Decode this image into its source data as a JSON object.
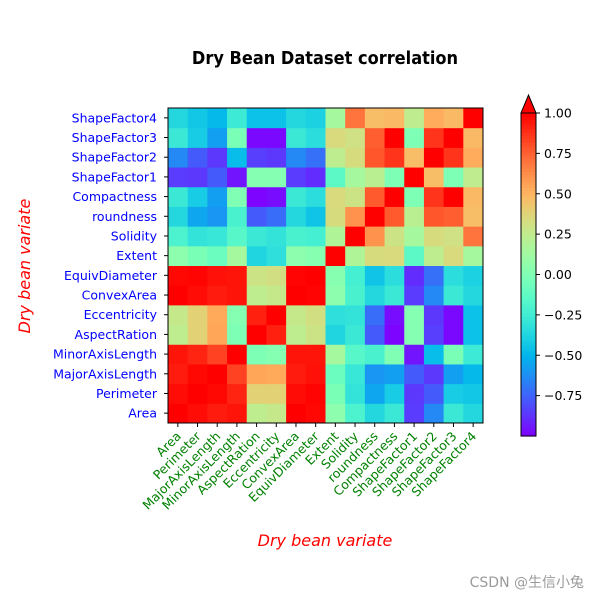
{
  "chart_data": {
    "type": "heatmap",
    "title": "Dry Bean Dataset correlation",
    "xlabel": "Dry bean variate",
    "ylabel": "Dry bean variate",
    "variables": [
      "Area",
      "Perimeter",
      "MajorAxisLength",
      "MinorAxisLength",
      "AspectRation",
      "Eccentricity",
      "ConvexArea",
      "EquivDiameter",
      "Extent",
      "Solidity",
      "roundness",
      "Compactness",
      "ShapeFactor1",
      "ShapeFactor2",
      "ShapeFactor3",
      "ShapeFactor4"
    ],
    "matrix": [
      [
        1.0,
        0.97,
        0.93,
        0.95,
        0.24,
        0.27,
        1.0,
        0.98,
        0.05,
        -0.2,
        -0.36,
        -0.27,
        -0.85,
        -0.64,
        -0.27,
        -0.36
      ],
      [
        0.97,
        1.0,
        0.98,
        0.91,
        0.39,
        0.39,
        0.97,
        0.99,
        -0.02,
        -0.3,
        -0.55,
        -0.41,
        -0.86,
        -0.77,
        -0.41,
        -0.43
      ],
      [
        0.93,
        0.98,
        1.0,
        0.83,
        0.55,
        0.54,
        0.93,
        0.96,
        -0.08,
        -0.28,
        -0.6,
        -0.57,
        -0.77,
        -0.86,
        -0.57,
        -0.48
      ],
      [
        0.95,
        0.91,
        0.83,
        1.0,
        -0.01,
        0.02,
        0.95,
        0.95,
        0.15,
        -0.16,
        -0.21,
        0.0,
        -0.95,
        -0.47,
        -0.02,
        -0.26
      ],
      [
        0.24,
        0.39,
        0.55,
        -0.01,
        1.0,
        0.92,
        0.24,
        0.3,
        -0.37,
        -0.27,
        -0.77,
        -0.99,
        0.02,
        -0.84,
        -0.98,
        -0.45
      ],
      [
        0.27,
        0.39,
        0.54,
        0.02,
        0.92,
        1.0,
        0.27,
        0.32,
        -0.32,
        -0.3,
        -0.72,
        -0.97,
        0.02,
        -0.86,
        -0.98,
        -0.45
      ],
      [
        1.0,
        0.97,
        0.93,
        0.95,
        0.24,
        0.27,
        1.0,
        0.99,
        0.05,
        -0.21,
        -0.36,
        -0.27,
        -0.85,
        -0.64,
        -0.27,
        -0.36
      ],
      [
        0.98,
        0.99,
        0.96,
        0.95,
        0.3,
        0.32,
        0.99,
        1.0,
        0.03,
        -0.23,
        -0.44,
        -0.33,
        -0.89,
        -0.71,
        -0.33,
        -0.39
      ],
      [
        0.05,
        -0.02,
        -0.08,
        0.15,
        -0.37,
        -0.32,
        0.05,
        0.03,
        1.0,
        0.19,
        0.34,
        0.35,
        -0.14,
        0.24,
        0.35,
        0.15
      ],
      [
        -0.2,
        -0.3,
        -0.28,
        -0.16,
        -0.27,
        -0.3,
        -0.21,
        -0.23,
        0.19,
        1.0,
        0.61,
        0.3,
        0.15,
        0.34,
        0.31,
        0.7
      ],
      [
        -0.36,
        -0.55,
        -0.6,
        -0.21,
        -0.77,
        -0.72,
        -0.36,
        -0.44,
        0.34,
        0.61,
        1.0,
        0.77,
        0.23,
        0.78,
        0.76,
        0.47
      ],
      [
        -0.27,
        -0.41,
        -0.57,
        0.0,
        -0.99,
        -0.97,
        -0.27,
        -0.33,
        0.35,
        0.3,
        0.77,
        1.0,
        -0.01,
        0.87,
        1.0,
        0.48
      ],
      [
        -0.85,
        -0.86,
        -0.77,
        -0.95,
        0.02,
        0.02,
        -0.85,
        -0.89,
        -0.14,
        0.15,
        0.23,
        -0.01,
        1.0,
        0.47,
        -0.01,
        0.25
      ],
      [
        -0.64,
        -0.77,
        -0.86,
        -0.47,
        -0.84,
        -0.86,
        -0.64,
        -0.71,
        0.24,
        0.34,
        0.78,
        0.87,
        0.47,
        1.0,
        0.87,
        0.53
      ],
      [
        -0.27,
        -0.41,
        -0.57,
        -0.02,
        -0.98,
        -0.98,
        -0.27,
        -0.33,
        0.35,
        0.31,
        0.76,
        1.0,
        -0.01,
        0.87,
        1.0,
        0.48
      ],
      [
        -0.36,
        -0.43,
        -0.48,
        -0.26,
        -0.45,
        -0.45,
        -0.36,
        -0.39,
        0.15,
        0.7,
        0.47,
        0.48,
        0.25,
        0.53,
        0.48,
        1.0
      ]
    ],
    "colorbar": {
      "min": -1.0,
      "max": 1.0,
      "ticks": [
        1.0,
        0.75,
        0.5,
        0.25,
        0.0,
        -0.25,
        -0.5,
        -0.75
      ],
      "tick_labels": [
        "1.00",
        "0.75",
        "0.50",
        "0.25",
        "0.00",
        "−0.25",
        "−0.50",
        "−0.75"
      ],
      "colormap": "rainbow",
      "extend": "max"
    },
    "y_order": "bottom-to-top",
    "colors": {
      "title": "#000000",
      "axis_label": "#ff0000",
      "x_ticks": "#008000",
      "y_ticks": "#0000ff"
    }
  },
  "watermark": "CSDN @生信小兔"
}
